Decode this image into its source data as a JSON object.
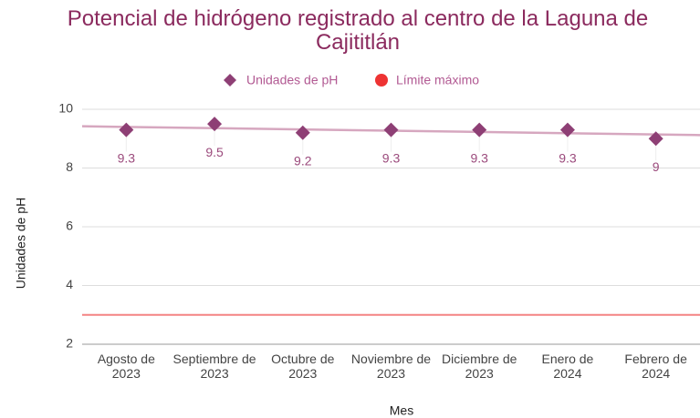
{
  "chart_data": {
    "type": "scatter",
    "title": "Potencial de hidrógeno registrado al centro de la Laguna de Cajititlán",
    "xlabel": "Mes",
    "ylabel": "Unidades de pH",
    "categories": [
      "Agosto de 2023",
      "Septiembre de 2023",
      "Octubre de 2023",
      "Noviembre de 2023",
      "Diciembre de 2023",
      "Enero de 2024",
      "Febrero de 2024"
    ],
    "series": [
      {
        "name": "Unidades de pH",
        "color": "#8e3f75",
        "values": [
          9.3,
          9.5,
          9.2,
          9.3,
          9.3,
          9.3,
          9
        ]
      },
      {
        "name": "Límite máximo",
        "color": "#ee3333",
        "value": 3
      }
    ],
    "ylim": [
      2,
      10
    ],
    "yticks": [
      2,
      4,
      6,
      8,
      10
    ],
    "grid": true,
    "trendline": true,
    "legend": "top"
  }
}
